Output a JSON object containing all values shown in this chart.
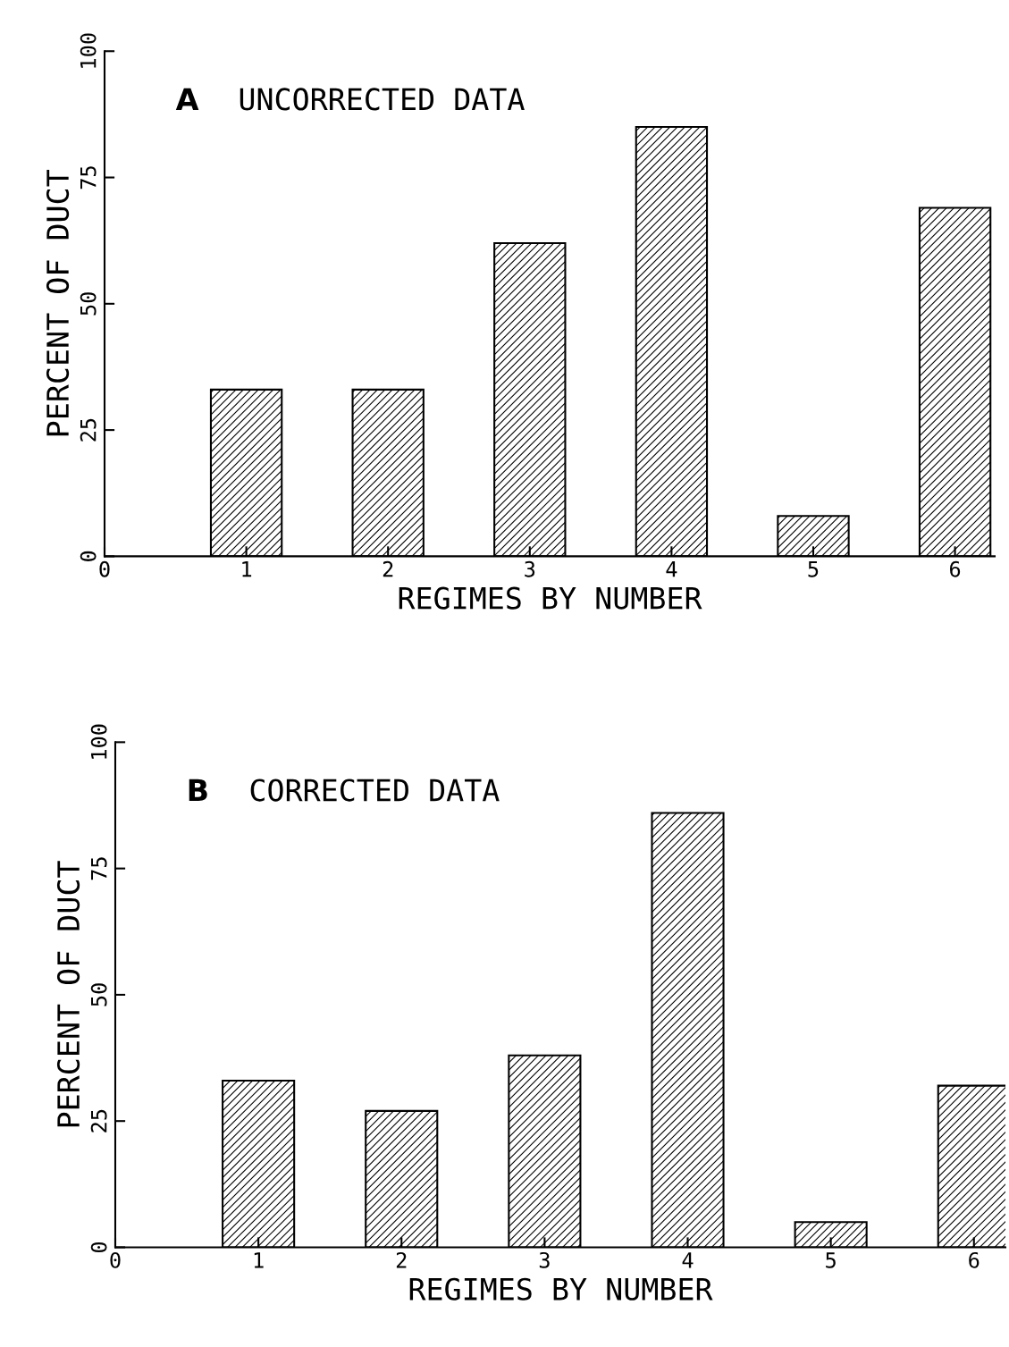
{
  "chart_data": [
    {
      "type": "bar",
      "title": "A",
      "subtitle": "UNCORRECTED DATA",
      "xlabel": "REGIMES BY NUMBER",
      "ylabel": "PERCENT OF DUCT",
      "x": [
        1,
        2,
        3,
        4,
        5,
        6
      ],
      "values": [
        33,
        33,
        62,
        85,
        8,
        69
      ],
      "color": "#000000",
      "xlim": [
        0,
        6.28
      ],
      "xticks": [
        0,
        1,
        2,
        3,
        4,
        5,
        6
      ],
      "ylim": [
        0,
        100
      ],
      "yticks": [
        0,
        25,
        50,
        75,
        100
      ],
      "grid": false,
      "legend": false
    },
    {
      "type": "bar",
      "title": "B",
      "subtitle": "CORRECTED DATA",
      "xlabel": "REGIMES BY NUMBER",
      "ylabel": "PERCENT OF DUCT",
      "x": [
        1,
        2,
        3,
        4,
        5,
        6
      ],
      "values": [
        33,
        27,
        38,
        86,
        5,
        32
      ],
      "color": "#000000",
      "xlim": [
        0,
        6.22
      ],
      "xticks": [
        0,
        1,
        2,
        3,
        4,
        5,
        6
      ],
      "ylim": [
        0,
        100
      ],
      "yticks": [
        0,
        25,
        50,
        75,
        100
      ],
      "grid": false,
      "legend": false
    }
  ]
}
